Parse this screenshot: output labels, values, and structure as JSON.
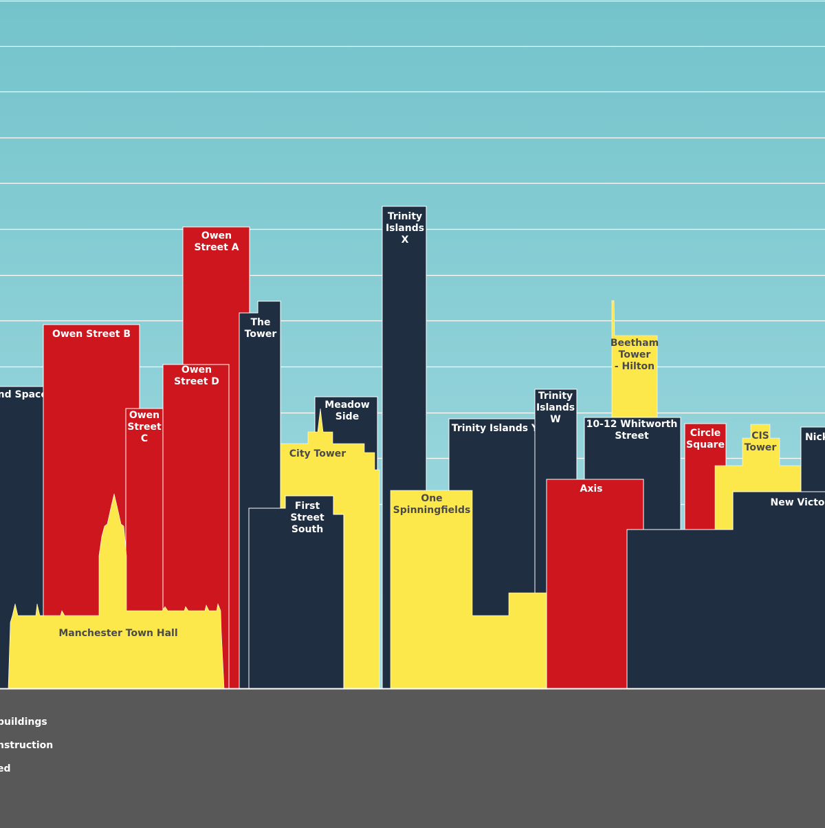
{
  "colors": {
    "sky_top": "#74c3cb",
    "sky_bottom": "#a4dce2",
    "existing": "#1f2e40",
    "construction": "#cd161d",
    "proposed": "#fde84c",
    "ground": "#585858",
    "gridline": "#ffffff"
  },
  "buildings": [
    {
      "key": "b_land",
      "name": "…and Space",
      "label": [
        "and Space"
      ],
      "status": "existing",
      "label_color": "#ffffff"
    },
    {
      "key": "b_owen_b",
      "name": "Owen Street B",
      "label": [
        "Owen Street B"
      ],
      "status": "construction",
      "label_color": "#ffffff"
    },
    {
      "key": "b_owen_c",
      "name": "Owen Street C",
      "label": [
        "Owen",
        "Street",
        "C"
      ],
      "status": "construction",
      "label_color": "#ffffff"
    },
    {
      "key": "b_owen_d",
      "name": "Owen Street D",
      "label": [
        "Owen",
        "Street D"
      ],
      "status": "construction",
      "label_color": "#ffffff"
    },
    {
      "key": "b_owen_a",
      "name": "Owen Street A",
      "label": [
        "Owen",
        "Street A"
      ],
      "status": "construction",
      "label_color": "#ffffff"
    },
    {
      "key": "b_the_tower",
      "name": "The Tower",
      "label": [
        "The",
        "Tower"
      ],
      "status": "existing",
      "label_color": "#ffffff"
    },
    {
      "key": "b_meadow",
      "name": "Meadow Side",
      "label": [
        "Meadow",
        "Side"
      ],
      "status": "existing",
      "label_color": "#ffffff"
    },
    {
      "key": "b_city_tower",
      "name": "City Tower",
      "label": [
        "City Tower"
      ],
      "status": "proposed",
      "label_color": "#4a4a4a"
    },
    {
      "key": "b_trinity_x",
      "name": "Trinity Islands X",
      "label": [
        "Trinity",
        "Islands",
        "X"
      ],
      "status": "existing",
      "label_color": "#ffffff"
    },
    {
      "key": "b_first_street",
      "name": "First Street South",
      "label": [
        "First",
        "Street",
        "South"
      ],
      "status": "existing",
      "label_color": "#ffffff"
    },
    {
      "key": "b_one_spinning",
      "name": "One Spinningfields",
      "label": [
        "One",
        "Spinningfields"
      ],
      "status": "proposed",
      "label_color": "#4a4a4a"
    },
    {
      "key": "b_trinity_y",
      "name": "Trinity Islands Y",
      "label": [
        "Trinity Islands Y"
      ],
      "status": "existing",
      "label_color": "#ffffff"
    },
    {
      "key": "b_trinity_w",
      "name": "Trinity Islands W",
      "label": [
        "Trinity",
        "Islands",
        "W"
      ],
      "status": "existing",
      "label_color": "#ffffff"
    },
    {
      "key": "b_beetham",
      "name": "Beetham Tower - Hilton",
      "label": [
        "Beetham",
        "Tower",
        "- Hilton"
      ],
      "status": "proposed",
      "label_color": "#4a4a4a"
    },
    {
      "key": "b_whitworth",
      "name": "10-12 Whitworth Street",
      "label": [
        "10-12 Whitworth",
        "Street"
      ],
      "status": "existing",
      "label_color": "#ffffff"
    },
    {
      "key": "b_axis",
      "name": "Axis",
      "label": [
        "Axis"
      ],
      "status": "construction",
      "label_color": "#ffffff"
    },
    {
      "key": "b_circle",
      "name": "Circle Square",
      "label": [
        "Circle",
        "Square"
      ],
      "status": "construction",
      "label_color": "#ffffff"
    },
    {
      "key": "b_cis",
      "name": "CIS Tower",
      "label": [
        "CIS",
        "Tower"
      ],
      "status": "proposed",
      "label_color": "#4a4a4a"
    },
    {
      "key": "b_nick",
      "name": "Nick…",
      "label": [
        "Nick"
      ],
      "status": "existing",
      "label_color": "#ffffff"
    },
    {
      "key": "b_new_victoria",
      "name": "New Victo…",
      "label": [
        "New Victo"
      ],
      "status": "existing",
      "label_color": "#ffffff"
    },
    {
      "key": "b_town_hall",
      "name": "Manchester Town Hall",
      "label": [
        "Manchester Town Hall"
      ],
      "status": "proposed",
      "label_color": "#4a4a4a"
    }
  ],
  "legend": [
    {
      "text": "buildings",
      "status": "existing"
    },
    {
      "text": "nstruction",
      "status": "construction"
    },
    {
      "text": "ed",
      "status": "proposed"
    }
  ]
}
